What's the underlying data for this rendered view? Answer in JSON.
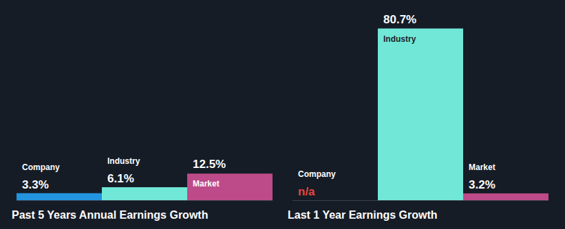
{
  "chart_data": [
    {
      "type": "bar",
      "title": "Past 5 Years Annual Earnings Growth",
      "categories": [
        "Company",
        "Industry",
        "Market"
      ],
      "values": [
        3.3,
        6.1,
        12.5
      ],
      "value_labels": [
        "3.3%",
        "6.1%",
        "12.5%"
      ],
      "colors": [
        "#2394df",
        "#71e8d7",
        "#bd4a89"
      ],
      "ylim": [
        0,
        87
      ],
      "data_labels": true,
      "tick_labels": false,
      "grid": false
    },
    {
      "type": "bar",
      "title": "Last 1 Year Earnings Growth",
      "categories": [
        "Company",
        "Industry",
        "Market"
      ],
      "values": [
        null,
        80.7,
        3.2
      ],
      "value_labels": [
        "n/a",
        "80.7%",
        "3.2%"
      ],
      "colors": [
        "#2394df",
        "#71e8d7",
        "#bd4a89"
      ],
      "ylim": [
        0,
        87
      ],
      "data_labels": true,
      "tick_labels": false,
      "grid": false
    }
  ]
}
